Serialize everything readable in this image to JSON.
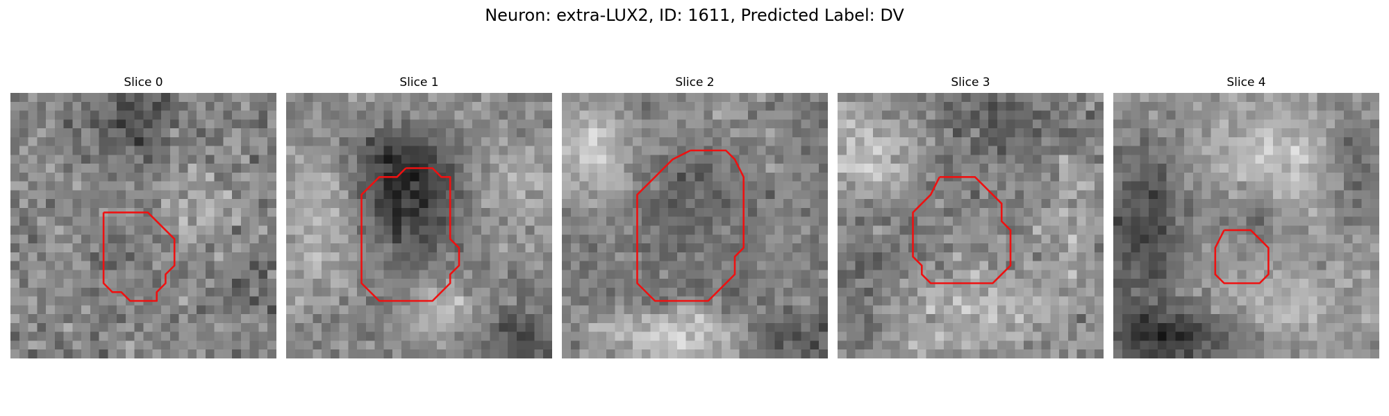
{
  "figure": {
    "title": "Neuron: extra-LUX2, ID: 1611, Predicted Label: DV"
  },
  "outline_color": "#ee1111",
  "panels": [
    {
      "title": "Slice 0"
    },
    {
      "title": "Slice 1"
    },
    {
      "title": "Slice 2"
    },
    {
      "title": "Slice 3"
    },
    {
      "title": "Slice 4"
    }
  ]
}
